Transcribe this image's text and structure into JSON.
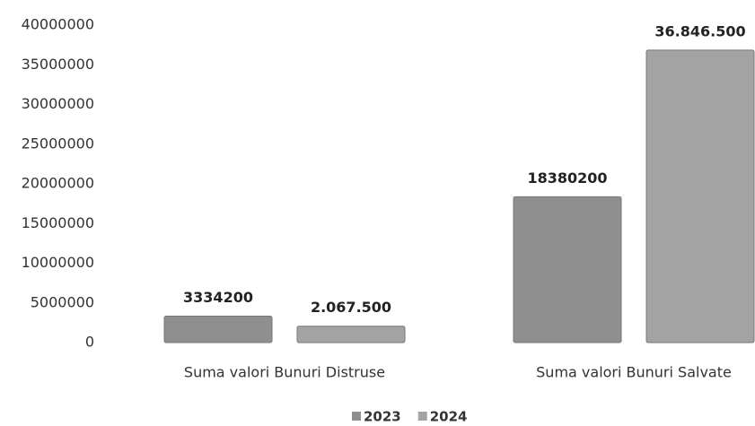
{
  "chart_data": {
    "type": "bar",
    "categories": [
      "Suma valori Bunuri Distruse",
      "Suma valori Bunuri Salvate"
    ],
    "series": [
      {
        "name": "2023",
        "color": "#8f8f8f",
        "values": [
          3334200,
          18380200
        ],
        "value_labels": [
          "3334200",
          "18380200"
        ]
      },
      {
        "name": "2024",
        "color": "#a3a3a3",
        "values": [
          2067500,
          36846500
        ],
        "value_labels": [
          "2.067.500",
          "36.846.500"
        ]
      }
    ],
    "ylim": [
      0,
      40000000
    ],
    "yticks": [
      0,
      5000000,
      10000000,
      15000000,
      20000000,
      25000000,
      30000000,
      35000000,
      40000000
    ],
    "grid": false,
    "legend": "bottom"
  }
}
